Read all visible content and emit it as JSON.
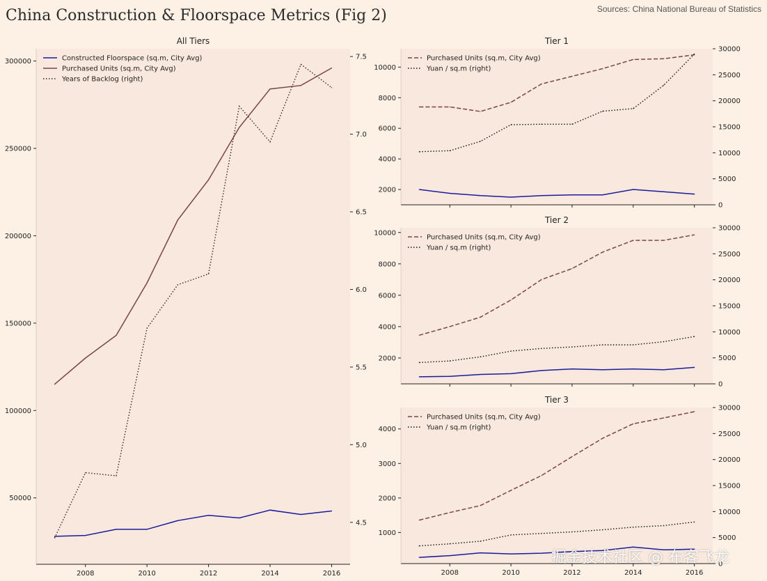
{
  "header": {
    "title": "China Construction & Floorspace Metrics (Fig 2)",
    "source": "Sources: China National Bureau of Statistics"
  },
  "watermark": "掘金技术社区 @ 布客飞龙",
  "colors": {
    "background": "#fdf1e6",
    "panel": "#f9e8dd",
    "constructed": "#1a1a9e",
    "purchased": "#7a4444",
    "dotted": "#3a2222"
  },
  "chart_data": [
    {
      "type": "line",
      "panel": "all",
      "title": "All Tiers",
      "x": [
        2007,
        2008,
        2009,
        2010,
        2011,
        2012,
        2013,
        2014,
        2015,
        2016
      ],
      "xticks": [
        2008,
        2010,
        2012,
        2014,
        2016
      ],
      "xlim": [
        2006.4,
        2016.6
      ],
      "ylim": [
        12000,
        307000
      ],
      "yticks": [
        50000,
        100000,
        150000,
        200000,
        250000,
        300000
      ],
      "ylim_right": [
        4.23,
        7.55
      ],
      "yticks_right": [
        4.5,
        5.0,
        5.5,
        6.0,
        6.5,
        7.0,
        7.5
      ],
      "legend_position": "top-left",
      "series": [
        {
          "name": "Constructed Floorspace (sq.m, City Avg)",
          "axis": "left",
          "style": "solid",
          "color": "#1a1a9e",
          "values": [
            28000,
            28500,
            32000,
            32000,
            37000,
            40000,
            38500,
            43000,
            40500,
            42500
          ]
        },
        {
          "name": "Purchased Units (sq.m, City Avg)",
          "axis": "left",
          "style": "solid",
          "color": "#7a4444",
          "values": [
            115000,
            130000,
            143000,
            173000,
            209000,
            232000,
            262000,
            284000,
            286000,
            296000
          ]
        },
        {
          "name": "Years of Backlog (right)",
          "axis": "right",
          "style": "dotted",
          "color": "#3a2222",
          "values": [
            4.4,
            4.82,
            4.8,
            5.75,
            6.03,
            6.1,
            7.18,
            6.95,
            7.45,
            7.3
          ]
        }
      ]
    },
    {
      "type": "line",
      "panel": "tier1",
      "title": "Tier 1",
      "x": [
        2007,
        2008,
        2009,
        2010,
        2011,
        2012,
        2013,
        2014,
        2015,
        2016
      ],
      "xticks": [
        2008,
        2010,
        2012,
        2014,
        2016
      ],
      "xlim": [
        2006.4,
        2016.6
      ],
      "ylim": [
        1000,
        11200
      ],
      "yticks": [
        2000,
        4000,
        6000,
        8000,
        10000
      ],
      "ylim_right": [
        0,
        30000
      ],
      "yticks_right": [
        0,
        5000,
        10000,
        15000,
        20000,
        25000,
        30000
      ],
      "legend_position": "top-left",
      "series": [
        {
          "name": "Purchased Units (sq.m, City Avg)",
          "axis": "left",
          "style": "dashed",
          "color": "#7a4444",
          "values": [
            7400,
            7400,
            7100,
            7700,
            8900,
            9400,
            9900,
            10500,
            10550,
            10800
          ]
        },
        {
          "name": "",
          "axis": "left",
          "style": "solid",
          "color": "#1a1a9e",
          "values": [
            2000,
            1750,
            1600,
            1500,
            1600,
            1650,
            1650,
            2000,
            1850,
            1700
          ]
        },
        {
          "name": "Yuan / sq.m (right)",
          "axis": "right",
          "style": "dotted",
          "color": "#111111",
          "values": [
            10200,
            10400,
            12200,
            15400,
            15500,
            15500,
            18000,
            18500,
            23000,
            29000
          ]
        }
      ]
    },
    {
      "type": "line",
      "panel": "tier2",
      "title": "Tier 2",
      "x": [
        2007,
        2008,
        2009,
        2010,
        2011,
        2012,
        2013,
        2014,
        2015,
        2016
      ],
      "xticks": [
        2008,
        2010,
        2012,
        2014,
        2016
      ],
      "xlim": [
        2006.4,
        2016.6
      ],
      "ylim": [
        350,
        10300
      ],
      "yticks": [
        2000,
        4000,
        6000,
        8000,
        10000
      ],
      "ylim_right": [
        0,
        30000
      ],
      "yticks_right": [
        0,
        5000,
        10000,
        15000,
        20000,
        25000,
        30000
      ],
      "legend_position": "top-left",
      "series": [
        {
          "name": "Purchased Units (sq.m, City Avg)",
          "axis": "left",
          "style": "dashed",
          "color": "#7a4444",
          "values": [
            3450,
            4000,
            4600,
            5700,
            7000,
            7700,
            8750,
            9500,
            9500,
            9850
          ]
        },
        {
          "name": "",
          "axis": "left",
          "style": "solid",
          "color": "#1a1a9e",
          "values": [
            800,
            830,
            950,
            1000,
            1200,
            1300,
            1250,
            1300,
            1250,
            1400
          ]
        },
        {
          "name": "Yuan / sq.m (right)",
          "axis": "right",
          "style": "dotted",
          "color": "#111111",
          "values": [
            4100,
            4400,
            5200,
            6300,
            6800,
            7100,
            7500,
            7500,
            8100,
            9100
          ]
        }
      ]
    },
    {
      "type": "line",
      "panel": "tier3",
      "title": "Tier 3",
      "x": [
        2007,
        2008,
        2009,
        2010,
        2011,
        2012,
        2013,
        2014,
        2015,
        2016
      ],
      "xticks": [
        2008,
        2010,
        2012,
        2014,
        2016
      ],
      "xlim": [
        2006.4,
        2016.6
      ],
      "ylim": [
        100,
        4620
      ],
      "yticks": [
        1000,
        2000,
        3000,
        4000
      ],
      "ylim_right": [
        0,
        30000
      ],
      "yticks_right": [
        0,
        5000,
        10000,
        15000,
        20000,
        25000,
        30000
      ],
      "legend_position": "top-left",
      "series": [
        {
          "name": "Purchased Units (sq.m, City Avg)",
          "axis": "left",
          "style": "dashed",
          "color": "#7a4444",
          "values": [
            1360,
            1580,
            1780,
            2220,
            2650,
            3200,
            3730,
            4150,
            4320,
            4500
          ]
        },
        {
          "name": "",
          "axis": "left",
          "style": "solid",
          "color": "#1a1a9e",
          "values": [
            280,
            330,
            410,
            380,
            400,
            450,
            480,
            580,
            500,
            520
          ]
        },
        {
          "name": "Yuan / sq.m (right)",
          "axis": "right",
          "style": "dotted",
          "color": "#111111",
          "values": [
            3400,
            3800,
            4300,
            5500,
            5800,
            6100,
            6500,
            7000,
            7300,
            8000
          ]
        }
      ]
    }
  ]
}
